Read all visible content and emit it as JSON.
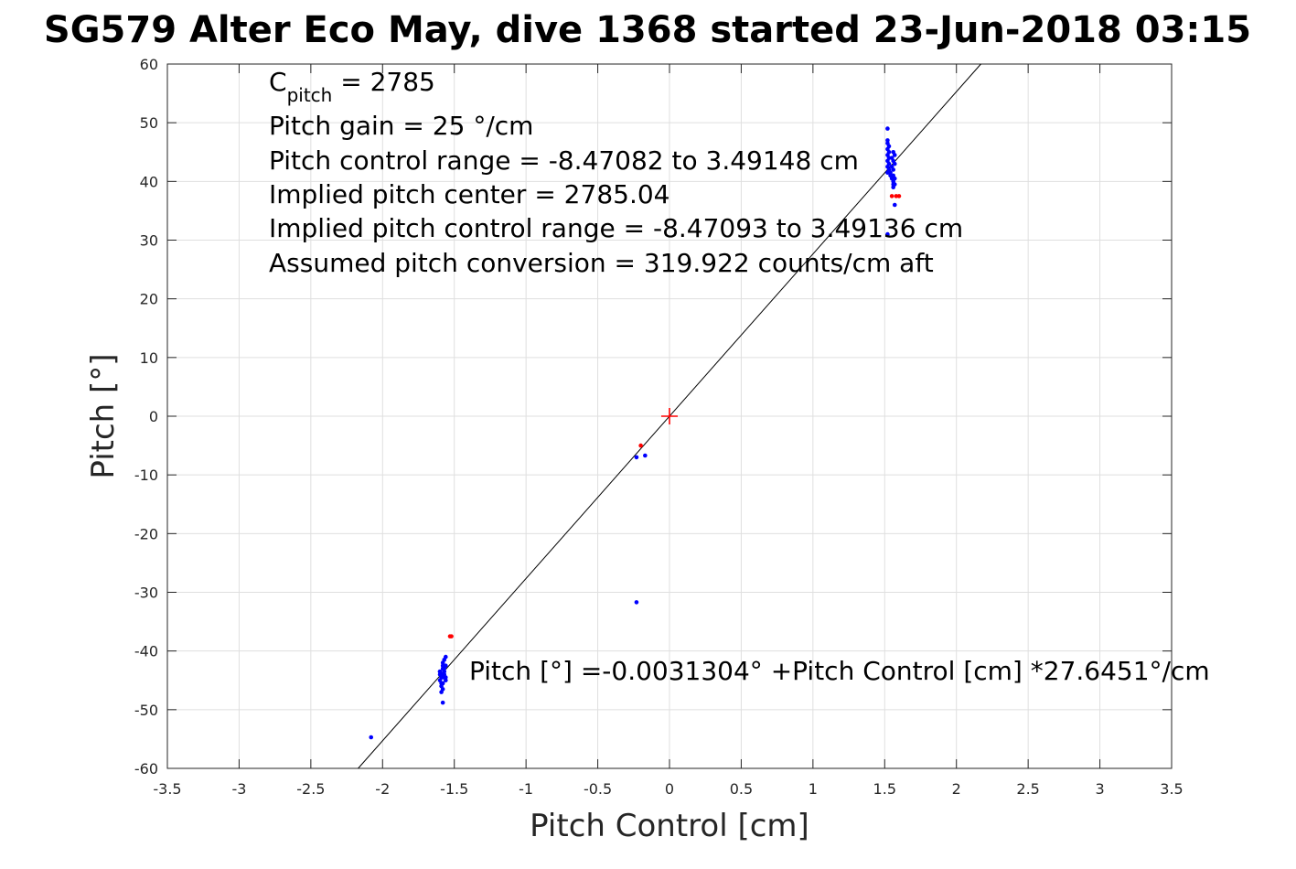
{
  "chart_data": {
    "type": "scatter",
    "title": "SG579 Alter Eco May, dive 1368 started 23-Jun-2018 03:15",
    "xlabel": "Pitch Control [cm]",
    "ylabel": "Pitch [°]",
    "xlim": [
      -3.5,
      3.5
    ],
    "ylim": [
      -60,
      60
    ],
    "xticks": [
      -3.5,
      -3,
      -2.5,
      -2,
      -1.5,
      -1,
      -0.5,
      0,
      0.5,
      1,
      1.5,
      2,
      2.5,
      3,
      3.5
    ],
    "yticks": [
      -60,
      -50,
      -40,
      -30,
      -20,
      -10,
      0,
      10,
      20,
      30,
      40,
      50,
      60
    ],
    "xtick_labels": [
      "-3.5",
      "-3",
      "-2.5",
      "-2",
      "-1.5",
      "-1",
      "-0.5",
      "0",
      "0.5",
      "1",
      "1.5",
      "2",
      "2.5",
      "3",
      "3.5"
    ],
    "ytick_labels": [
      "-60",
      "-50",
      "-40",
      "-30",
      "-20",
      "-10",
      "0",
      "10",
      "20",
      "30",
      "40",
      "50",
      "60"
    ],
    "grid": true,
    "fit_line": {
      "intercept": -0.0031304,
      "slope": 27.6451
    },
    "center_marker": {
      "x": 0,
      "y": 0,
      "color": "#ff0000"
    },
    "annotations": {
      "c_pitch_base": "C",
      "c_pitch_sub": "pitch",
      "c_pitch_value": " = 2785",
      "pitch_gain": "Pitch gain = 25 °/cm",
      "pitch_control_range": "Pitch control range = -8.47082 to 3.49148 cm",
      "implied_center": "Implied pitch center = 2785.04",
      "implied_range": "Implied pitch control range = -8.47093 to 3.49136 cm",
      "assumed_conversion": "Assumed pitch conversion = 319.922 counts/cm aft",
      "fit_equation": "Pitch [°] =-0.0031304° +Pitch Control [cm] *27.6451°/cm"
    },
    "series": [
      {
        "color": "#0000ff",
        "x": [
          1.52,
          1.52,
          1.52,
          1.53,
          1.52,
          1.53,
          1.52,
          1.53,
          1.52,
          1.53,
          1.52,
          1.53,
          1.52,
          1.54,
          1.55,
          1.56,
          1.57,
          1.56,
          1.57,
          1.55,
          1.56,
          1.57,
          1.56,
          1.55,
          1.54,
          1.56,
          1.57,
          1.56,
          1.56,
          1.57,
          1.52,
          -1.6,
          -1.59,
          -1.58,
          -1.6,
          -1.59,
          -1.57,
          -1.56,
          -1.58,
          -1.57,
          -1.56,
          -1.59,
          -1.6,
          -1.58,
          -1.57,
          -1.56,
          -1.58,
          -1.59,
          -1.6,
          -1.58,
          -1.57,
          -1.56,
          -1.59,
          -1.58,
          -2.08,
          -1.58,
          -0.23,
          -0.17,
          -0.23
        ],
        "y": [
          49,
          47,
          46.5,
          46,
          45.5,
          45,
          44.5,
          44,
          43.5,
          43,
          42.5,
          42,
          41.5,
          41,
          40.5,
          40,
          39.5,
          42,
          43,
          44,
          45,
          44.5,
          43.5,
          42.5,
          41.5,
          41,
          40.5,
          39.5,
          39,
          36,
          31,
          -43.5,
          -44,
          -44.5,
          -45,
          -45.5,
          -43,
          -42.5,
          -42,
          -41.5,
          -41,
          -46,
          -44,
          -43,
          -44,
          -45,
          -46.5,
          -47,
          -43.5,
          -42.5,
          -43.5,
          -44.5,
          -44.5,
          -45.5,
          -54.7,
          -48.8,
          -7,
          -6.7,
          -31.7
        ]
      },
      {
        "color": "#ff0000",
        "x": [
          1.55,
          1.58,
          1.6,
          -1.52,
          -1.53,
          -0.2
        ],
        "y": [
          37.5,
          37.5,
          37.5,
          -37.5,
          -37.5,
          -5
        ]
      }
    ]
  }
}
